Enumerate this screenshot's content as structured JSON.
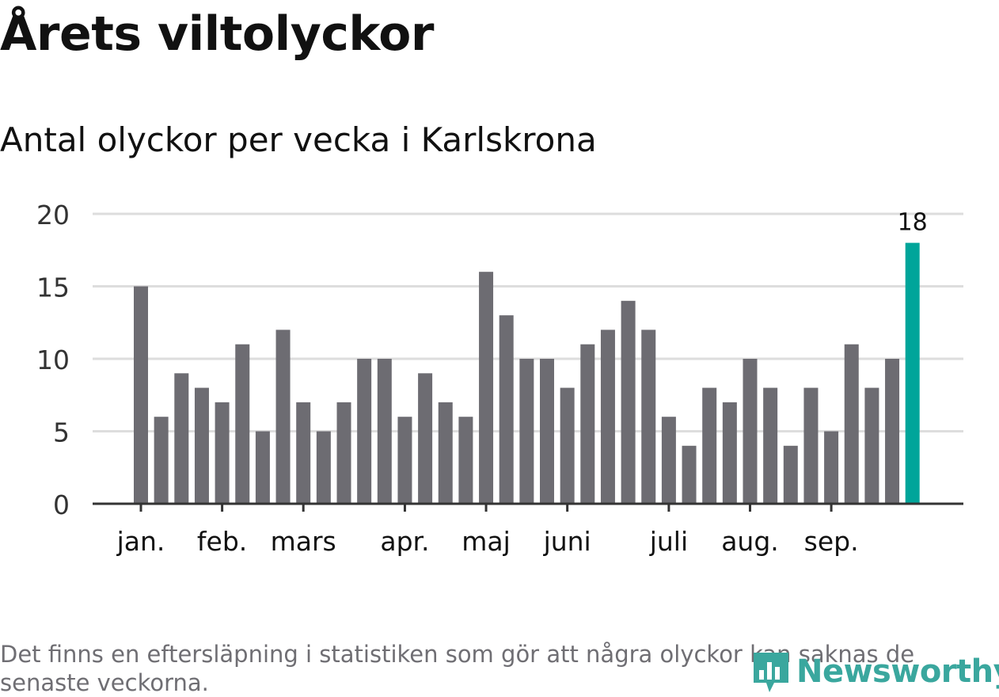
{
  "title": "Årets viltolyckor",
  "subtitle": "Antal olyckor per vecka i Karlskrona",
  "footnote": "Det finns en eftersläpning i statistiken som gör att några olyckor kan saknas de senaste veckorna.",
  "logo_text": "Newsworthy",
  "colors": {
    "bar": "#6d6c72",
    "highlight": "#00a59a",
    "grid": "#dddddd",
    "axis": "#333333",
    "text": "#333333",
    "logo": "#3aa79e"
  },
  "chart_data": {
    "type": "bar",
    "ylim": [
      0,
      20
    ],
    "yticks": [
      "0",
      "5",
      "10",
      "15",
      "20"
    ],
    "grid": true,
    "values": [
      15,
      6,
      9,
      8,
      7,
      11,
      5,
      12,
      7,
      5,
      7,
      10,
      10,
      6,
      9,
      7,
      6,
      16,
      13,
      10,
      10,
      8,
      11,
      12,
      14,
      12,
      6,
      4,
      8,
      7,
      10,
      8,
      4,
      8,
      5,
      11,
      8,
      10,
      18
    ],
    "highlight_index": 38,
    "highlight_label": "18",
    "month_labels": [
      {
        "label": "jan.",
        "index": 0
      },
      {
        "label": "feb.",
        "index": 4
      },
      {
        "label": "mars",
        "index": 8
      },
      {
        "label": "apr.",
        "index": 13
      },
      {
        "label": "maj",
        "index": 17
      },
      {
        "label": "juni",
        "index": 21
      },
      {
        "label": "juli",
        "index": 26
      },
      {
        "label": "aug.",
        "index": 30
      },
      {
        "label": "sep.",
        "index": 34
      }
    ]
  }
}
